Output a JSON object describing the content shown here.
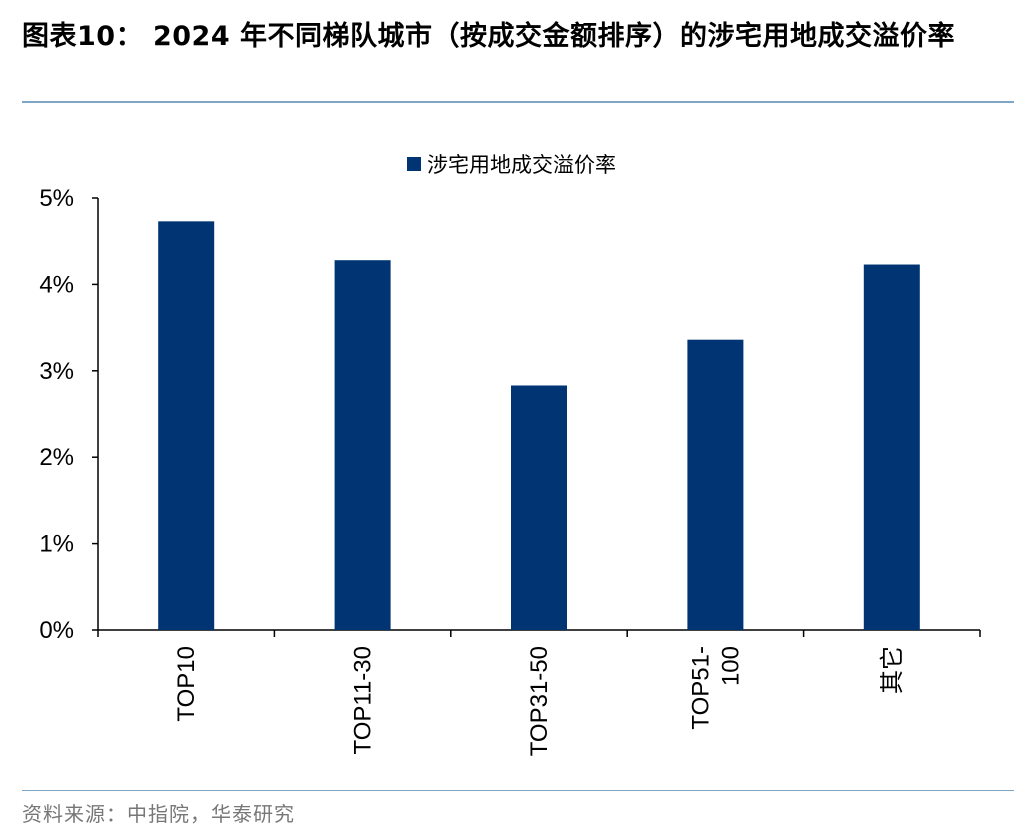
{
  "header": {
    "title": "图表10： 2024 年不同梯队城市（按成交金额排序）的涉宅用地成交溢价率"
  },
  "footer": {
    "source": "资料来源：中指院，华泰研究"
  },
  "chart_data": {
    "type": "bar",
    "categories": [
      "TOP10",
      "TOP11-30",
      "TOP31-50",
      "TOP51-100",
      "其它"
    ],
    "category_label_lines": [
      [
        "TOP10"
      ],
      [
        "TOP11-30"
      ],
      [
        "TOP31-50"
      ],
      [
        "TOP51-",
        "100"
      ],
      [
        "其它"
      ]
    ],
    "series": [
      {
        "name": "涉宅用地成交溢价率",
        "values": [
          4.73,
          4.28,
          2.83,
          3.36,
          4.23
        ],
        "color": "#003472"
      }
    ],
    "y_unit": "%",
    "ylim": [
      0,
      5
    ],
    "yticks": [
      0,
      1,
      2,
      3,
      4,
      5
    ],
    "ytick_labels": [
      "0%",
      "1%",
      "2%",
      "3%",
      "4%",
      "5%"
    ],
    "xlabel": "",
    "ylabel": "",
    "legend_position": "top-center",
    "grid": false,
    "colors": {
      "bar": "#003472",
      "axis": "#000000",
      "rule": "#7fa6c4"
    }
  }
}
